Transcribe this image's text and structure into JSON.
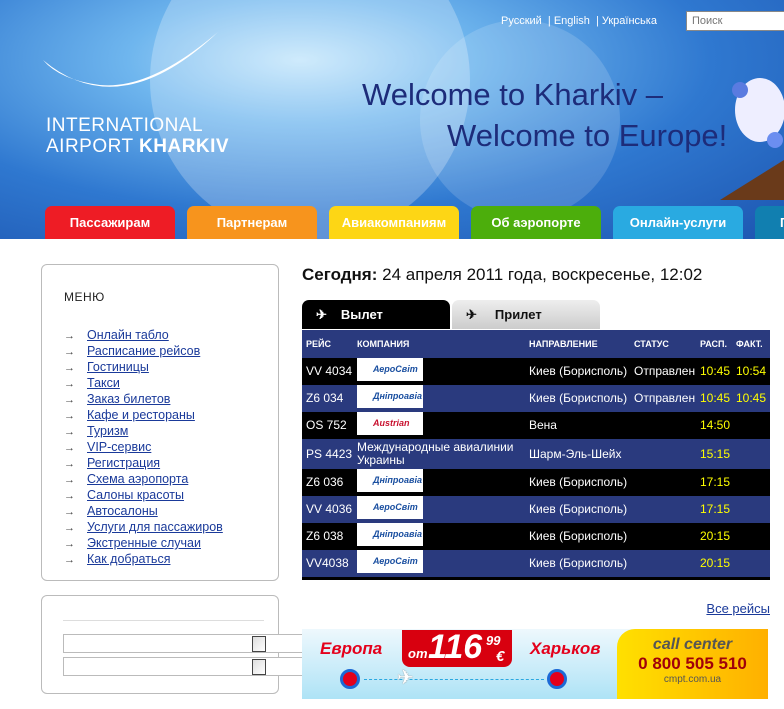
{
  "header": {
    "logo_line1": "INTERNATIONAL",
    "logo_line2a": "AIRPORT ",
    "logo_line2b": "KHARKIV",
    "welcome1": "Welcome to Kharkiv –",
    "welcome2": "Welcome to Europe!",
    "languages": [
      "Русский",
      "English",
      "Українська"
    ],
    "search_placeholder": "Поиск"
  },
  "nav": [
    {
      "label": "Пассажирам",
      "color": "#ee1c25"
    },
    {
      "label": "Партнерам",
      "color": "#f7941d"
    },
    {
      "label": "Авиакомпаниям",
      "color": "#fdd615"
    },
    {
      "label": "Об аэропорте",
      "color": "#4cae0c"
    },
    {
      "label": "Онлайн-услуги",
      "color": "#29aae1"
    },
    {
      "label": "П",
      "color": "#117fb0"
    }
  ],
  "menu": {
    "title": "МЕНЮ",
    "items": [
      "Онлайн табло",
      "Расписание рейсов",
      "Гостиницы",
      "Такси",
      "Заказ билетов",
      "Кафе и рестораны",
      "Туризм",
      "VIP-сервис",
      "Регистрация",
      "Схема аэропорта",
      "Салоны красоты",
      "Автосалоны",
      "Услуги для пассажиров",
      "Экстренные случаи",
      "Как добраться"
    ]
  },
  "today": {
    "label": "Сегодня:",
    "value": " 24 апреля 2011 года, воскресенье, 12:02"
  },
  "board": {
    "tabs": [
      "Вылет",
      "Прилет"
    ],
    "active_tab": "Вылет",
    "columns": [
      "РЕЙС",
      "КОМПАНИЯ",
      "НАПРАВЛЕНИЕ",
      "СТАТУС",
      "РАСП.",
      "ФАКТ."
    ],
    "rows": [
      {
        "flight": "VV 4034",
        "company": "АероСвіт",
        "destination": "Киев (Борисполь)",
        "status": "Отправлен",
        "scheduled": "10:45",
        "actual": "10:54"
      },
      {
        "flight": "Z6 034",
        "company": "Дніпроавіа",
        "destination": "Киев (Борисполь)",
        "status": "Отправлен",
        "scheduled": "10:45",
        "actual": "10:45"
      },
      {
        "flight": "OS 752",
        "company": "Austrian",
        "destination": "Вена",
        "status": "",
        "scheduled": "14:50",
        "actual": ""
      },
      {
        "flight": "PS 4423",
        "company": "Международные авиалинии Украины",
        "destination": "Шарм-Эль-Шейх",
        "status": "",
        "scheduled": "15:15",
        "actual": ""
      },
      {
        "flight": "Z6 036",
        "company": "Дніпроавіа",
        "destination": "Киев (Борисполь)",
        "status": "",
        "scheduled": "17:15",
        "actual": ""
      },
      {
        "flight": "VV 4036",
        "company": "АероСвіт",
        "destination": "Киев (Борисполь)",
        "status": "",
        "scheduled": "17:15",
        "actual": ""
      },
      {
        "flight": "Z6 038",
        "company": "Дніпроавіа",
        "destination": "Киев (Борисполь)",
        "status": "",
        "scheduled": "20:15",
        "actual": ""
      },
      {
        "flight": "VV4038",
        "company": "АероСвіт",
        "destination": "Киев (Борисполь)",
        "status": "",
        "scheduled": "20:15",
        "actual": ""
      }
    ],
    "all_flights": "Все рейсы"
  },
  "banner": {
    "from": "Европа",
    "price_prefix": "от",
    "price": "116",
    "cents": "99",
    "currency": "€",
    "to": "Харьков",
    "cc_title": "call center",
    "phone": "0 800 505 510",
    "site": "cmpt.com.ua"
  }
}
